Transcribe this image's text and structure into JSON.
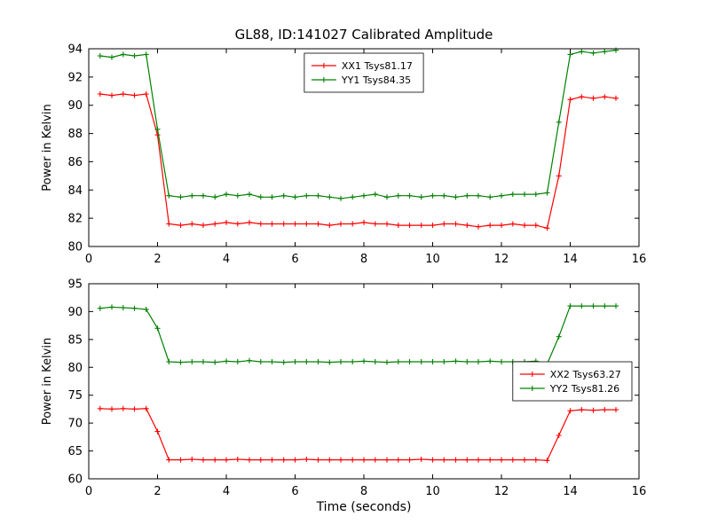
{
  "figure": {
    "title": "GL88, ID:141027 Calibrated Amplitude",
    "background": "#ffffff"
  },
  "chart_data": [
    {
      "type": "line",
      "title": "",
      "xlabel": "",
      "ylabel": "Power in Kelvin",
      "xlim": [
        0,
        16
      ],
      "ylim": [
        80,
        94
      ],
      "xticks": [
        0,
        2,
        4,
        6,
        8,
        10,
        12,
        14,
        16
      ],
      "yticks": [
        80,
        82,
        84,
        86,
        88,
        90,
        92,
        94
      ],
      "grid": false,
      "legend_loc": "upper center",
      "marker": "plus",
      "x": [
        0.33,
        0.67,
        1.0,
        1.33,
        1.67,
        2.0,
        2.33,
        2.67,
        3.0,
        3.33,
        3.67,
        4.0,
        4.33,
        4.67,
        5.0,
        5.33,
        5.67,
        6.0,
        6.33,
        6.67,
        7.0,
        7.33,
        7.67,
        8.0,
        8.33,
        8.67,
        9.0,
        9.33,
        9.67,
        10.0,
        10.33,
        10.67,
        11.0,
        11.33,
        11.67,
        12.0,
        12.33,
        12.67,
        13.0,
        13.33,
        13.67,
        14.0,
        14.33,
        14.67,
        15.0,
        15.33
      ],
      "series": [
        {
          "name": "XX1 Tsys81.17",
          "color": "#ff0000",
          "values": [
            90.8,
            90.7,
            90.8,
            90.7,
            90.8,
            87.9,
            81.6,
            81.5,
            81.6,
            81.5,
            81.6,
            81.7,
            81.6,
            81.7,
            81.6,
            81.6,
            81.6,
            81.6,
            81.6,
            81.6,
            81.5,
            81.6,
            81.6,
            81.7,
            81.6,
            81.6,
            81.5,
            81.5,
            81.5,
            81.5,
            81.6,
            81.6,
            81.5,
            81.4,
            81.5,
            81.5,
            81.6,
            81.5,
            81.5,
            81.3,
            85.0,
            90.4,
            90.6,
            90.5,
            90.6,
            90.5
          ]
        },
        {
          "name": "YY1 Tsys84.35",
          "color": "#008000",
          "values": [
            93.5,
            93.4,
            93.6,
            93.5,
            93.6,
            88.3,
            83.6,
            83.5,
            83.6,
            83.6,
            83.5,
            83.7,
            83.6,
            83.7,
            83.5,
            83.5,
            83.6,
            83.5,
            83.6,
            83.6,
            83.5,
            83.4,
            83.5,
            83.6,
            83.7,
            83.5,
            83.6,
            83.6,
            83.5,
            83.6,
            83.6,
            83.5,
            83.6,
            83.6,
            83.5,
            83.6,
            83.7,
            83.7,
            83.7,
            83.8,
            88.8,
            93.6,
            93.8,
            93.7,
            93.8,
            93.9
          ]
        }
      ]
    },
    {
      "type": "line",
      "title": "",
      "xlabel": "Time (seconds)",
      "ylabel": "Power in Kelvin",
      "xlim": [
        0,
        16
      ],
      "ylim": [
        60,
        95
      ],
      "xticks": [
        0,
        2,
        4,
        6,
        8,
        10,
        12,
        14,
        16
      ],
      "yticks": [
        60,
        65,
        70,
        75,
        80,
        85,
        90,
        95
      ],
      "grid": false,
      "legend_loc": "center right",
      "marker": "plus",
      "x": [
        0.33,
        0.67,
        1.0,
        1.33,
        1.67,
        2.0,
        2.33,
        2.67,
        3.0,
        3.33,
        3.67,
        4.0,
        4.33,
        4.67,
        5.0,
        5.33,
        5.67,
        6.0,
        6.33,
        6.67,
        7.0,
        7.33,
        7.67,
        8.0,
        8.33,
        8.67,
        9.0,
        9.33,
        9.67,
        10.0,
        10.33,
        10.67,
        11.0,
        11.33,
        11.67,
        12.0,
        12.33,
        12.67,
        13.0,
        13.33,
        13.67,
        14.0,
        14.33,
        14.67,
        15.0,
        15.33
      ],
      "series": [
        {
          "name": "XX2 Tsys63.27",
          "color": "#ff0000",
          "values": [
            72.6,
            72.5,
            72.6,
            72.5,
            72.6,
            68.5,
            63.4,
            63.4,
            63.5,
            63.4,
            63.4,
            63.4,
            63.5,
            63.4,
            63.4,
            63.4,
            63.4,
            63.4,
            63.5,
            63.4,
            63.4,
            63.4,
            63.4,
            63.4,
            63.4,
            63.4,
            63.4,
            63.4,
            63.5,
            63.4,
            63.4,
            63.4,
            63.4,
            63.4,
            63.4,
            63.4,
            63.4,
            63.4,
            63.4,
            63.3,
            67.8,
            72.2,
            72.4,
            72.3,
            72.4,
            72.4
          ]
        },
        {
          "name": "YY2 Tsys81.26",
          "color": "#008000",
          "values": [
            90.6,
            90.8,
            90.7,
            90.6,
            90.4,
            87.0,
            81.0,
            80.9,
            81.0,
            81.0,
            80.9,
            81.1,
            81.0,
            81.2,
            81.0,
            81.0,
            80.9,
            81.0,
            81.0,
            81.0,
            80.9,
            81.0,
            81.0,
            81.1,
            81.0,
            80.9,
            81.0,
            81.0,
            81.0,
            81.0,
            81.0,
            81.1,
            81.0,
            81.0,
            81.1,
            81.0,
            81.0,
            81.0,
            81.1,
            80.6,
            85.5,
            91.0,
            91.0,
            91.0,
            91.0,
            91.0
          ]
        }
      ]
    }
  ]
}
